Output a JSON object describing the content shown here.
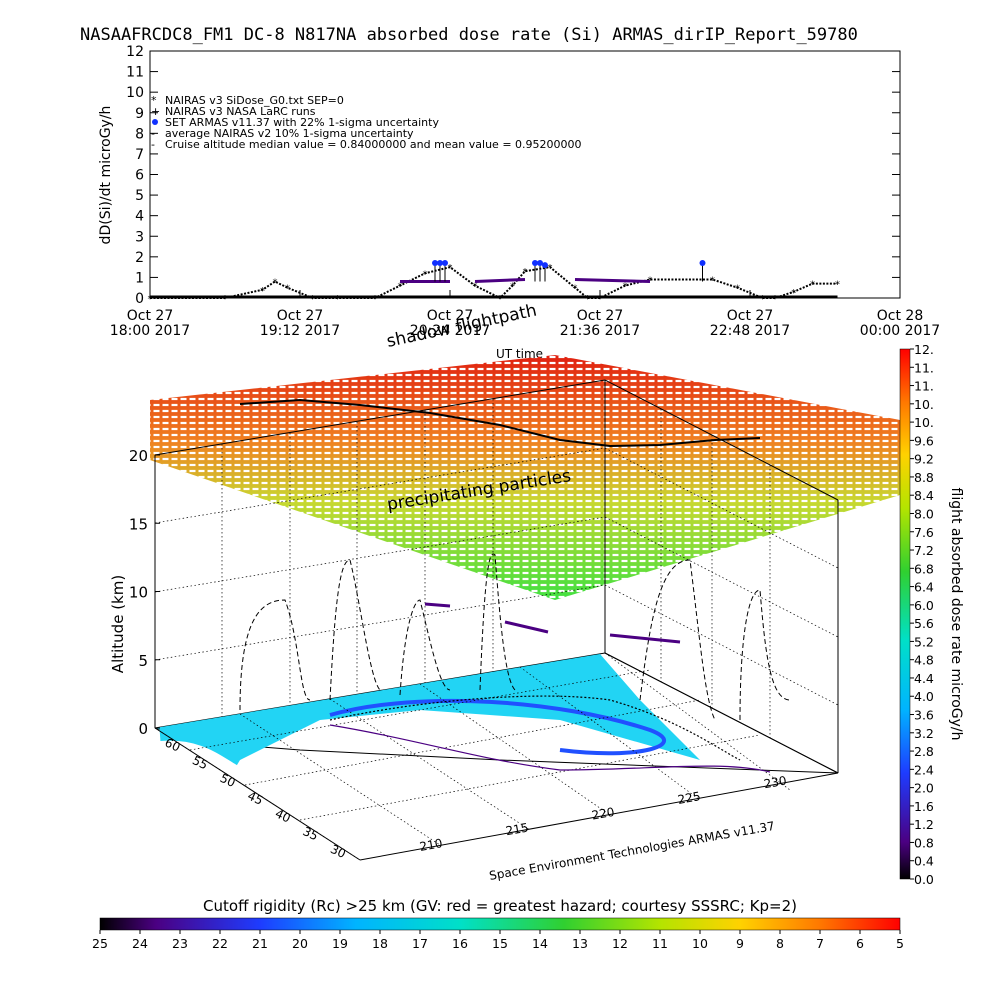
{
  "header": {
    "title": "NASAAFRCDC8_FM1 DC-8   N817NA absorbed dose rate (Si) ARMAS_dirIP_Report_59780"
  },
  "chart_data": [
    {
      "type": "line",
      "ylabel": "dD(Si)/dt microGy/h",
      "xlabel": "UT time",
      "ylim": [
        0,
        12
      ],
      "y_ticks": [
        "0",
        "1",
        "2",
        "3",
        "4",
        "5",
        "6",
        "7",
        "8",
        "9",
        "10",
        "11",
        "12"
      ],
      "x_ticks": [
        {
          "line1": "Oct 27",
          "line2": "18:00 2017"
        },
        {
          "line1": "Oct 27",
          "line2": "19:12 2017"
        },
        {
          "line1": "Oct 27",
          "line2": "20:24 2017"
        },
        {
          "line1": "Oct 27",
          "line2": "21:36 2017"
        },
        {
          "line1": "Oct 27",
          "line2": "22:48 2017"
        },
        {
          "line1": "Oct 28",
          "line2": "00:00 2017"
        }
      ],
      "xlim_hours": [
        18.0,
        24.0
      ],
      "legend": [
        {
          "symbol": "*",
          "label": "NAIRAS v3 SiDose_G0.txt SEP=0"
        },
        {
          "symbol": "+",
          "label": "NAIRAS v3 NASA LaRC runs"
        },
        {
          "symbol": "dot",
          "label": "SET ARMAS v11.37 with 22% 1-sigma uncertainty"
        },
        {
          "symbol": "-",
          "label": "average NAIRAS v2 10% 1-sigma uncertainty"
        },
        {
          "symbol": "-",
          "label": "Cruise altitude median value = 0.84000000 and mean value = 0.95200000"
        }
      ],
      "series": [
        {
          "name": "NAIRAS v3 SiDose_G0.txt SEP=0",
          "x_hours": [
            18.0,
            18.6,
            18.9,
            19.0,
            19.1,
            19.3,
            19.5,
            19.8,
            20.0,
            20.2,
            20.4,
            20.6,
            20.8,
            20.9,
            21.0,
            21.2,
            21.4,
            21.5,
            21.6,
            21.8,
            22.0,
            22.5,
            22.7,
            22.9,
            23.0,
            23.15,
            23.3,
            23.5
          ],
          "values": [
            0,
            0,
            0.4,
            0.8,
            0.5,
            0,
            0,
            0,
            0.6,
            1.2,
            1.5,
            0.6,
            0,
            0.6,
            1.3,
            1.5,
            0.5,
            0,
            0,
            0.6,
            0.9,
            0.9,
            0.5,
            0,
            0,
            0.3,
            0.7,
            0.7
          ]
        },
        {
          "name": "SET ARMAS v11.37 with 22% 1-sigma uncertainty",
          "x_hours": [
            20.28,
            20.32,
            20.36,
            21.08,
            21.12,
            21.16,
            22.42
          ],
          "values": [
            1.7,
            1.7,
            1.7,
            1.7,
            1.7,
            1.6,
            1.7
          ]
        },
        {
          "name": "average NAIRAS v2 10% 1-sigma uncertainty",
          "x_hours": [
            20.0,
            20.4,
            20.6,
            21.0,
            21.4,
            22.0,
            22.7
          ],
          "values": [
            0.8,
            0.8,
            0.8,
            0.9,
            0.9,
            0.8,
            0.8
          ]
        }
      ]
    },
    {
      "type": "surface3d",
      "title": "",
      "zlabel": "Altitude (km)",
      "z_ticks": [
        "0",
        "5",
        "10",
        "15",
        "20"
      ],
      "zlim": [
        0,
        20
      ],
      "lon_ticks": [
        "210",
        "215",
        "220",
        "225",
        "230"
      ],
      "lat_ticks": [
        "30",
        "35",
        "40",
        "45",
        "50",
        "55",
        "60"
      ],
      "annotations": [
        "shadow flightpath",
        "UT time",
        "precipitating particles"
      ],
      "footer": "Space Environment Technologies ARMAS v11.37"
    },
    {
      "type": "colorbar",
      "orientation": "vertical",
      "label": "flight absorbed dose rate microGy/h",
      "ticks": [
        "0.0",
        "0.4",
        "0.8",
        "1.2",
        "1.6",
        "2.0",
        "2.4",
        "2.8",
        "3.2",
        "3.6",
        "4.0",
        "4.4",
        "4.8",
        "5.2",
        "5.6",
        "6.0",
        "6.4",
        "6.8",
        "7.2",
        "7.6",
        "8.0",
        "8.4",
        "8.8",
        "9.2",
        "9.6",
        "10.",
        "10.",
        "11.",
        "11.",
        "12."
      ],
      "range": [
        0,
        12
      ]
    },
    {
      "type": "colorbar",
      "orientation": "horizontal",
      "label": "Cutoff rigidity (Rc) >25 km (GV: red = greatest hazard; courtesy SSSRC; Kp=2)",
      "ticks": [
        "25",
        "24",
        "23",
        "22",
        "21",
        "20",
        "19",
        "18",
        "17",
        "16",
        "15",
        "14",
        "13",
        "12",
        "11",
        "10",
        "9",
        "8",
        "7",
        "6",
        "5"
      ],
      "range": [
        25,
        5
      ]
    }
  ]
}
